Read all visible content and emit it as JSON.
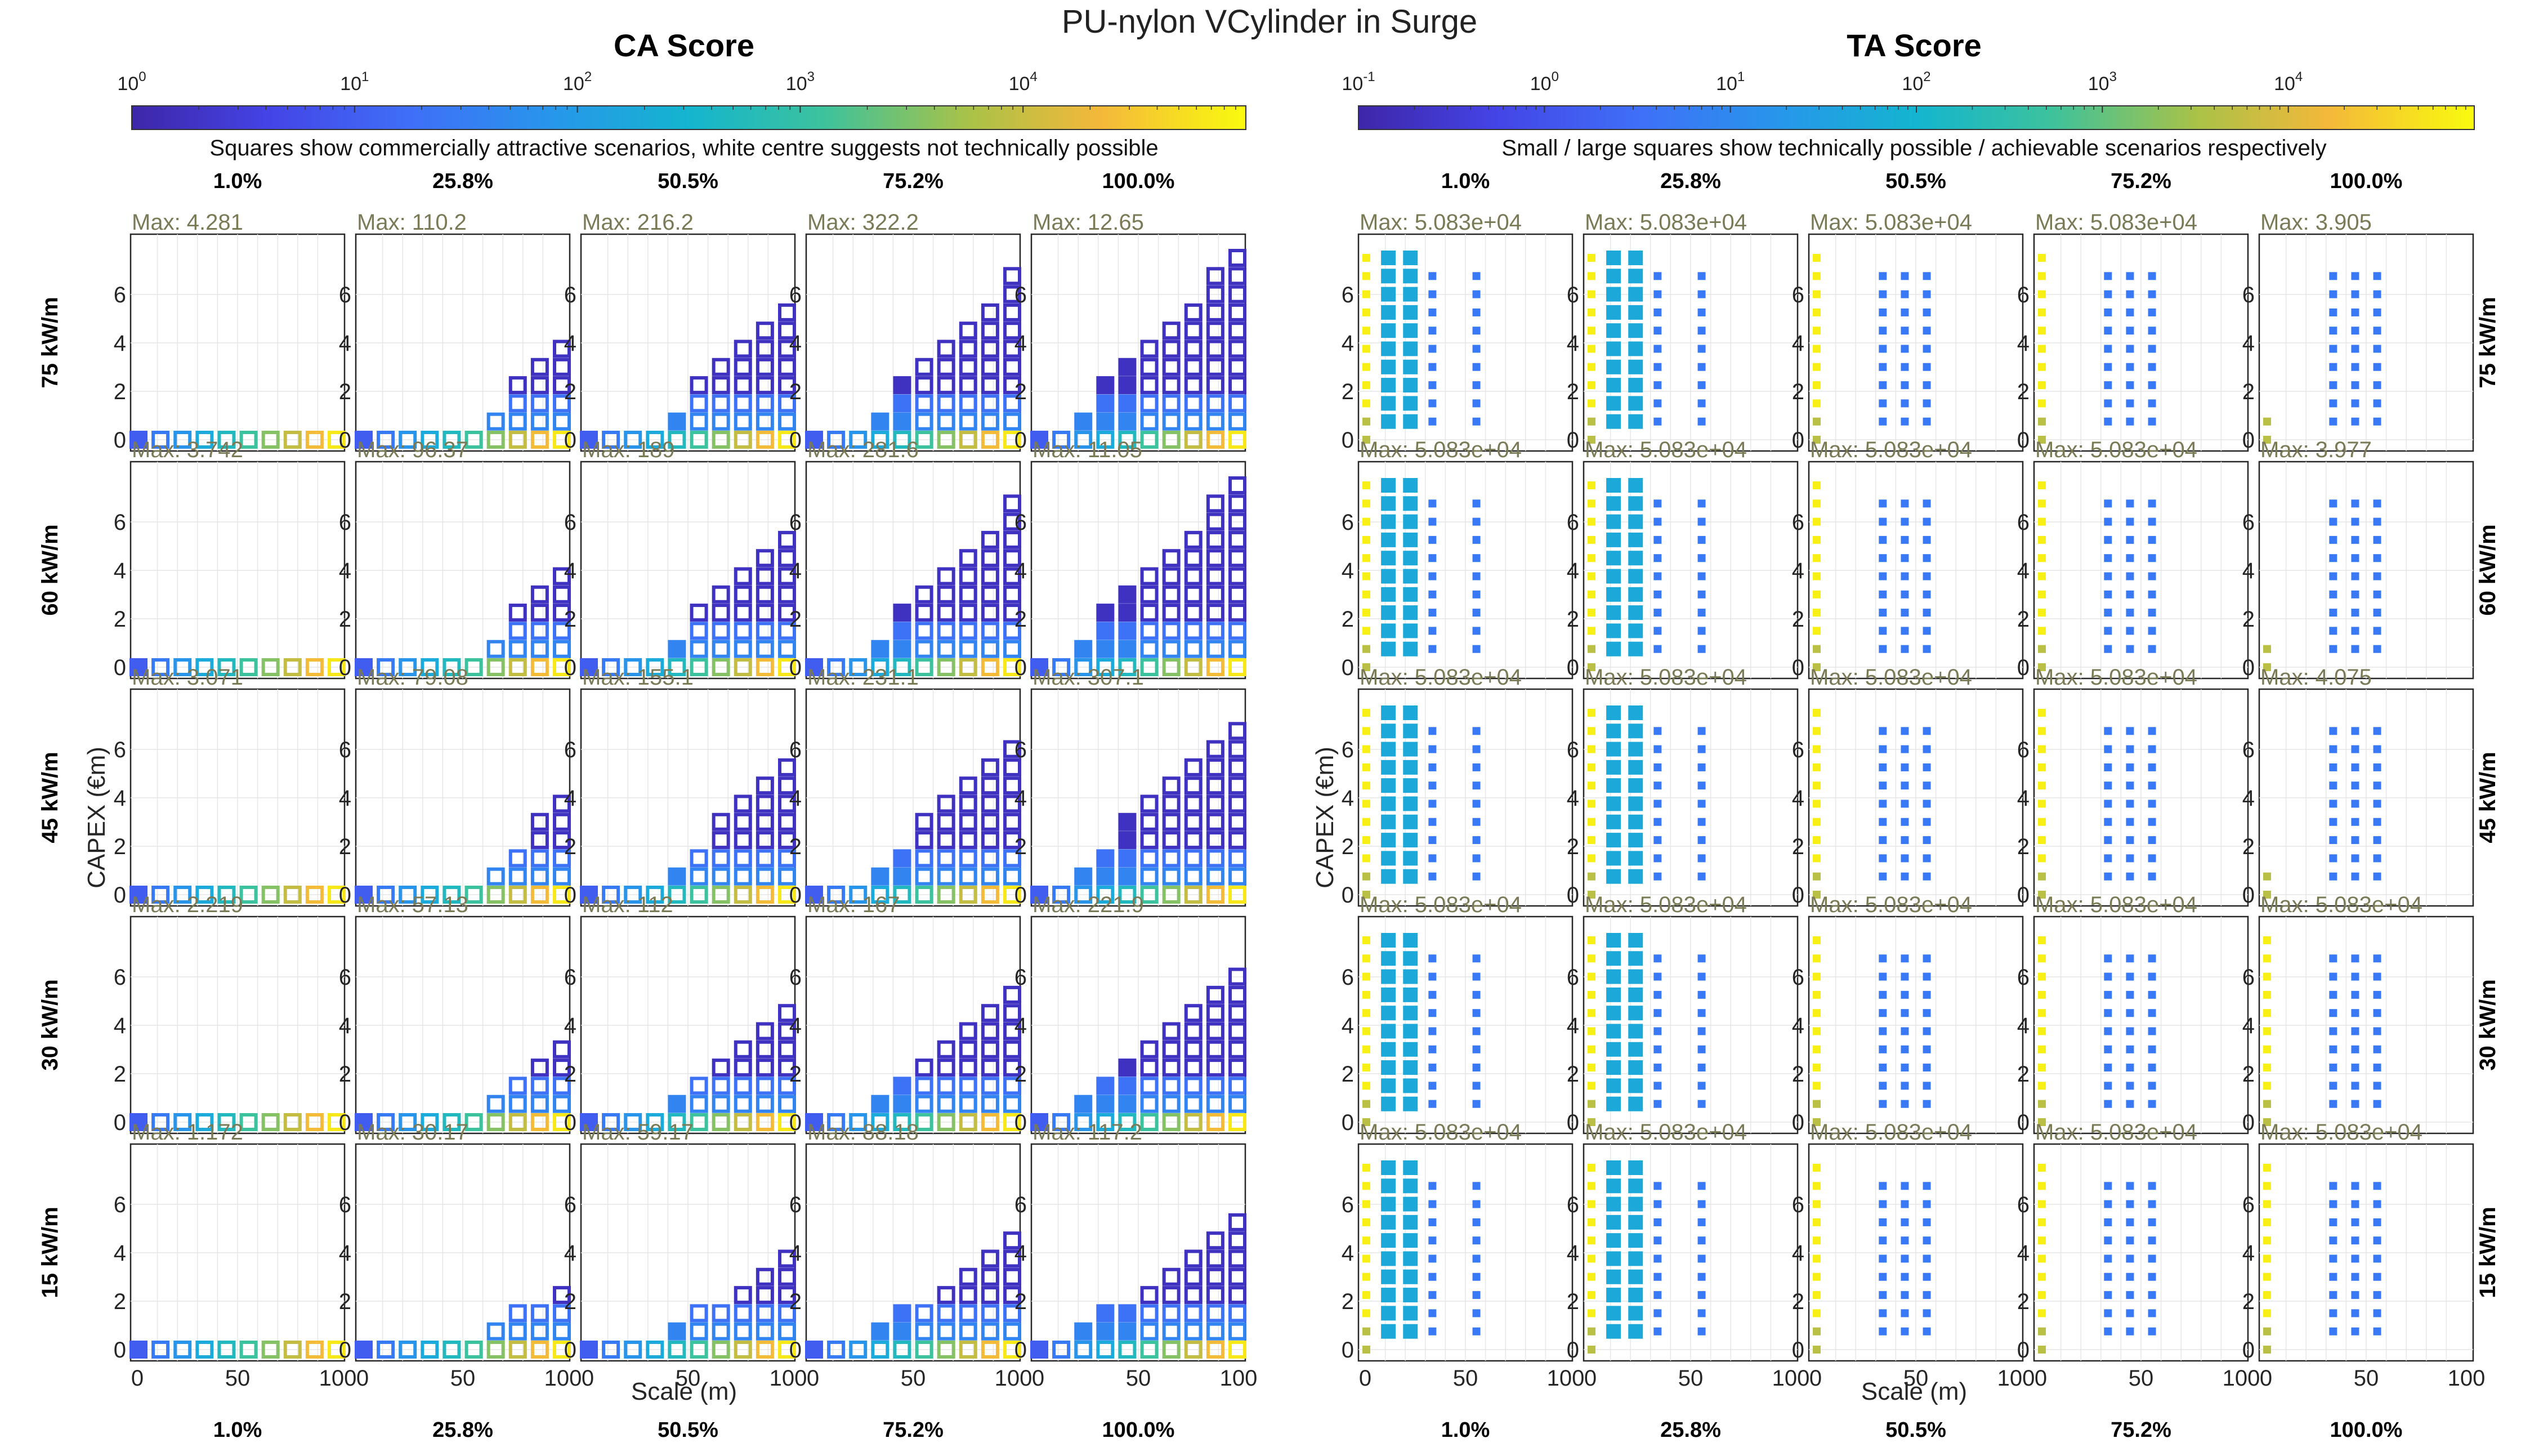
{
  "title": "PU-nylon VCylinder in Surge",
  "ca": {
    "title": "CA Score",
    "note": "Squares show commercially attractive scenarios, white centre suggests not technically possible",
    "colorbar_ticks": [
      "10",
      "10",
      "10",
      "10",
      "10"
    ],
    "colorbar_exponents": [
      "0",
      "1",
      "2",
      "3",
      "4"
    ]
  },
  "ta": {
    "title": "TA Score",
    "note": "Small / large squares show technically possible / achievable scenarios respectively",
    "colorbar_ticks": [
      "10",
      "10",
      "10",
      "10",
      "10",
      "10"
    ],
    "colorbar_exponents": [
      "-1",
      "0",
      "1",
      "2",
      "3",
      "4"
    ]
  },
  "columns": [
    "1.0%",
    "25.8%",
    "50.5%",
    "75.2%",
    "100.0%"
  ],
  "rows": [
    "75 kW/m",
    "60 kW/m",
    "45 kW/m",
    "30 kW/m",
    "15 kW/m"
  ],
  "xlabel": "Scale (m)",
  "ylabel": "CAPEX (€m)",
  "xticks": [
    "0",
    "50",
    "100"
  ],
  "yticks": [
    "0",
    "2",
    "4",
    "6"
  ],
  "ca_max": [
    [
      "Max: 4.281",
      "Max: 110.2",
      "Max: 216.2",
      "Max: 322.2",
      "Max: 12.65"
    ],
    [
      "Max: 3.742",
      "Max: 96.37",
      "Max:  189",
      "Max: 281.6",
      "Max: 11.05"
    ],
    [
      "Max: 3.071",
      "Max: 79.08",
      "Max: 155.1",
      "Max: 231.1",
      "Max: 307.1"
    ],
    [
      "Max: 2.219",
      "Max: 57.13",
      "Max:  112",
      "Max:  167",
      "Max: 221.9"
    ],
    [
      "Max: 1.172",
      "Max: 30.17",
      "Max: 59.17",
      "Max: 88.18",
      "Max: 117.2"
    ]
  ],
  "ta_max": [
    [
      "Max: 5.083e+04",
      "Max: 5.083e+04",
      "Max: 5.083e+04",
      "Max: 5.083e+04",
      "Max: 3.905"
    ],
    [
      "Max: 5.083e+04",
      "Max: 5.083e+04",
      "Max: 5.083e+04",
      "Max: 5.083e+04",
      "Max: 3.977"
    ],
    [
      "Max: 5.083e+04",
      "Max: 5.083e+04",
      "Max: 5.083e+04",
      "Max: 5.083e+04",
      "Max: 4.075"
    ],
    [
      "Max: 5.083e+04",
      "Max: 5.083e+04",
      "Max: 5.083e+04",
      "Max: 5.083e+04",
      "Max: 5.083e+04"
    ],
    [
      "Max: 5.083e+04",
      "Max: 5.083e+04",
      "Max: 5.083e+04",
      "Max: 5.083e+04",
      "Max: 5.083e+04"
    ]
  ],
  "chart_data": {
    "type": "heatmap",
    "title": "PU-nylon VCylinder in Surge",
    "panels": [
      "CA Score",
      "TA Score"
    ],
    "xlabel": "Scale (m)",
    "ylabel": "CAPEX (€m)",
    "xlim": [
      0,
      100
    ],
    "ylim": [
      0,
      7
    ],
    "color_scale": "log",
    "ca_colorbar_range": [
      1,
      100000
    ],
    "ta_colorbar_range": [
      0.1,
      100000
    ],
    "x_values": [
      0,
      11.1,
      22.2,
      33.3,
      44.4,
      55.6,
      66.7,
      77.8,
      88.9,
      100
    ],
    "y_values": [
      0,
      0.7,
      1.4,
      2.1,
      2.8,
      3.5,
      4.2,
      4.9,
      5.6,
      6.3,
      7
    ],
    "column_labels": [
      "1.0%",
      "25.8%",
      "50.5%",
      "75.2%",
      "100.0%"
    ],
    "row_labels": [
      "75 kW/m",
      "60 kW/m",
      "45 kW/m",
      "30 kW/m",
      "15 kW/m"
    ],
    "ca_max": [
      [
        4.281,
        110.2,
        216.2,
        322.2,
        12.65
      ],
      [
        3.742,
        96.37,
        189,
        281.6,
        11.05
      ],
      [
        3.071,
        79.08,
        155.1,
        231.1,
        307.1
      ],
      [
        2.219,
        57.13,
        112,
        167,
        221.9
      ],
      [
        1.172,
        30.17,
        59.17,
        88.18,
        117.2
      ]
    ],
    "ta_max": [
      [
        50830,
        50830,
        50830,
        50830,
        3.905
      ],
      [
        50830,
        50830,
        50830,
        50830,
        3.977
      ],
      [
        50830,
        50830,
        50830,
        50830,
        4.075
      ],
      [
        50830,
        50830,
        50830,
        50830,
        50830
      ],
      [
        50830,
        50830,
        50830,
        50830,
        50830
      ]
    ]
  }
}
